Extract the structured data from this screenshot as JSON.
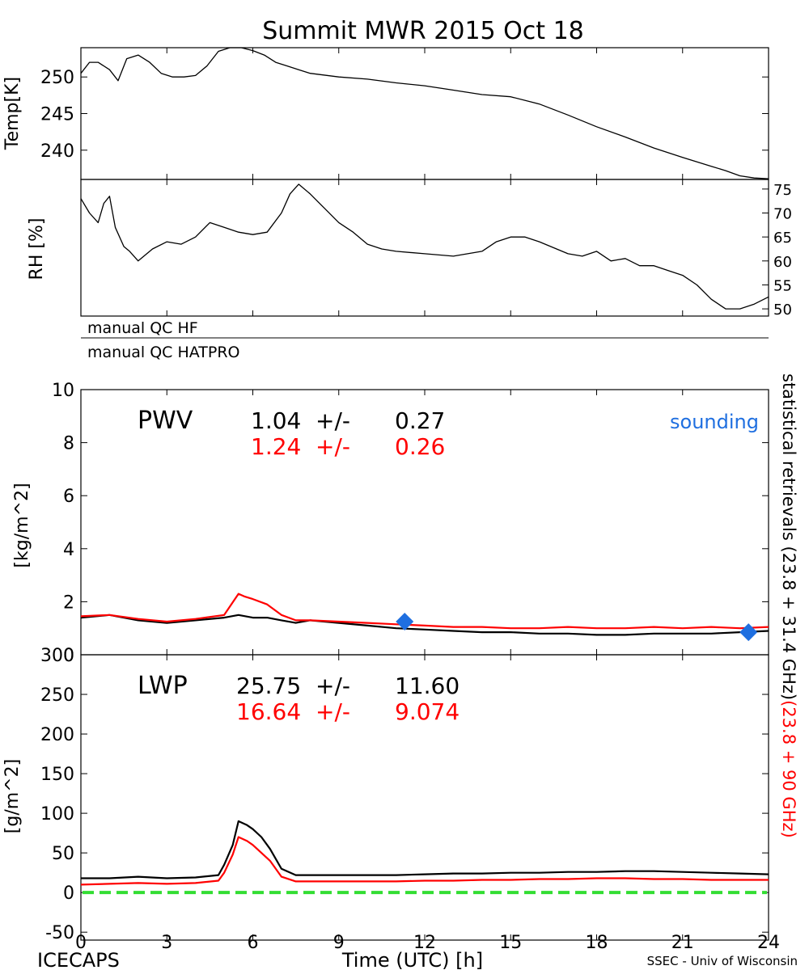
{
  "title": "Summit MWR 2015 Oct 18",
  "footer": {
    "left": "ICECAPS",
    "center": "Time (UTC) [h]",
    "right": "SSEC - Univ of Wisconsin"
  },
  "colors": {
    "primary": "#000000",
    "secondary": "#ff0000",
    "sounding": "#1f6fe0",
    "zero": "#33dd33"
  },
  "qc": {
    "hf": "manual QC HF",
    "hatpro": "manual QC HATPRO"
  },
  "right_label": {
    "black": "statistical retrievals (23.8 + 31.4 GHz)",
    "red": "(23.8 + 90 GHz)"
  },
  "chart_data": [
    {
      "id": "temp",
      "type": "line",
      "ylabel": "Temp[K]",
      "xlim": [
        0,
        24
      ],
      "ylim": [
        236,
        254
      ],
      "yticks": [
        240,
        245,
        250
      ],
      "series": [
        {
          "color": "#000000",
          "x": [
            0,
            0.3,
            0.6,
            1,
            1.3,
            1.6,
            2,
            2.4,
            2.8,
            3.2,
            3.6,
            4,
            4.4,
            4.8,
            5.2,
            5.6,
            6,
            6.4,
            6.8,
            7.2,
            7.6,
            8,
            9,
            10,
            11,
            12,
            13,
            14,
            15,
            16,
            17,
            18,
            19,
            20,
            21,
            22,
            22.5,
            23,
            23.5,
            24
          ],
          "y": [
            250.5,
            252,
            252,
            251,
            249.5,
            252.5,
            253,
            252,
            250.5,
            250,
            250,
            250.2,
            251.5,
            253.5,
            254,
            254,
            253.6,
            253,
            252,
            251.5,
            251,
            250.5,
            250,
            249.7,
            249.2,
            248.8,
            248.2,
            247.6,
            247.3,
            246.3,
            244.8,
            243.2,
            241.8,
            240.3,
            239,
            237.8,
            237.2,
            236.5,
            236.2,
            236.1
          ]
        }
      ]
    },
    {
      "id": "rh",
      "type": "line",
      "ylabel": "RH [%]",
      "xlim": [
        0,
        24
      ],
      "ylim": [
        48.5,
        77
      ],
      "yticks": [
        50,
        55,
        60,
        65,
        70,
        75
      ],
      "series": [
        {
          "color": "#000000",
          "x": [
            0,
            0.3,
            0.6,
            0.8,
            1,
            1.2,
            1.5,
            1.7,
            2,
            2.5,
            3,
            3.5,
            4,
            4.5,
            5,
            5.5,
            6,
            6.5,
            7,
            7.3,
            7.6,
            8,
            8.5,
            9,
            9.5,
            10,
            10.5,
            11,
            12,
            13,
            14,
            14.5,
            15,
            15.5,
            16,
            17,
            17.5,
            18,
            18.5,
            19,
            19.5,
            20,
            20.5,
            21,
            21.5,
            22,
            22.5,
            23,
            23.5,
            24
          ],
          "y": [
            73,
            70,
            68,
            72,
            73.5,
            67,
            63,
            62,
            60,
            62.5,
            64,
            63.5,
            65,
            68,
            67,
            66,
            65.5,
            66,
            70,
            74,
            76,
            74,
            71,
            68,
            66,
            63.5,
            62.5,
            62,
            61.5,
            61,
            62,
            64,
            65,
            65,
            64,
            61.5,
            61,
            62,
            60,
            60.5,
            59,
            59,
            58,
            57,
            55,
            52,
            50,
            50,
            51,
            52.5
          ]
        }
      ]
    },
    {
      "id": "pwv",
      "type": "line",
      "ylabel": "[kg/m^2]",
      "xlim": [
        0,
        24
      ],
      "ylim": [
        0,
        10
      ],
      "yticks": [
        0,
        2,
        4,
        6,
        8,
        10
      ],
      "label": "PWV",
      "stats": [
        {
          "mean": "1.04",
          "pm": "+/-",
          "sd": "0.27",
          "color": "#000000"
        },
        {
          "mean": "1.24",
          "pm": "+/-",
          "sd": "0.26",
          "color": "#ff0000"
        }
      ],
      "legend": "sounding",
      "series": [
        {
          "color": "#000000",
          "x": [
            0,
            1,
            2,
            3,
            4,
            5,
            5.5,
            6,
            6.5,
            7,
            7.5,
            8,
            9,
            10,
            11,
            12,
            13,
            14,
            15,
            16,
            17,
            18,
            19,
            20,
            21,
            22,
            23,
            24
          ],
          "y": [
            1.4,
            1.5,
            1.3,
            1.2,
            1.3,
            1.4,
            1.5,
            1.4,
            1.4,
            1.3,
            1.2,
            1.3,
            1.2,
            1.1,
            1.0,
            0.95,
            0.9,
            0.85,
            0.85,
            0.8,
            0.8,
            0.75,
            0.75,
            0.8,
            0.8,
            0.8,
            0.85,
            0.9
          ]
        },
        {
          "color": "#ff0000",
          "x": [
            0,
            1,
            2,
            3,
            4,
            5,
            5.5,
            5.7,
            6,
            6.5,
            7,
            7.5,
            8,
            9,
            10,
            11,
            12,
            13,
            14,
            15,
            16,
            17,
            18,
            19,
            20,
            21,
            22,
            23,
            24
          ],
          "y": [
            1.45,
            1.5,
            1.35,
            1.25,
            1.35,
            1.5,
            2.3,
            2.2,
            2.1,
            1.9,
            1.5,
            1.3,
            1.3,
            1.25,
            1.2,
            1.15,
            1.1,
            1.05,
            1.05,
            1.0,
            1.0,
            1.05,
            1.0,
            1.0,
            1.05,
            1.0,
            1.05,
            1.0,
            1.05
          ]
        }
      ],
      "sounding_points": [
        {
          "x": 11.3,
          "y": 1.25
        },
        {
          "x": 23.3,
          "y": 0.85
        }
      ]
    },
    {
      "id": "lwp",
      "type": "line",
      "ylabel": "[g/m^2]",
      "xlim": [
        0,
        24
      ],
      "ylim": [
        -60,
        300
      ],
      "yticks": [
        -50,
        0,
        50,
        100,
        150,
        200,
        250,
        300
      ],
      "xticks": [
        0,
        3,
        6,
        9,
        12,
        15,
        18,
        21,
        24
      ],
      "label": "LWP",
      "stats": [
        {
          "mean": "25.75",
          "pm": "+/-",
          "sd": "11.60",
          "color": "#000000"
        },
        {
          "mean": "16.64",
          "pm": "+/-",
          "sd": "9.074",
          "color": "#ff0000"
        }
      ],
      "zero_line": 0,
      "series": [
        {
          "color": "#000000",
          "x": [
            0,
            1,
            2,
            3,
            4,
            4.8,
            5,
            5.3,
            5.5,
            5.8,
            6,
            6.3,
            6.6,
            7,
            7.5,
            8,
            9,
            10,
            11,
            12,
            13,
            14,
            15,
            16,
            17,
            18,
            19,
            20,
            21,
            22,
            23,
            24
          ],
          "y": [
            18,
            18,
            20,
            18,
            19,
            22,
            35,
            60,
            90,
            85,
            80,
            70,
            55,
            30,
            22,
            22,
            22,
            22,
            22,
            23,
            24,
            24,
            25,
            25,
            26,
            26,
            27,
            27,
            26,
            25,
            24,
            23
          ]
        },
        {
          "color": "#ff0000",
          "x": [
            0,
            1,
            2,
            3,
            4,
            4.8,
            5,
            5.3,
            5.5,
            5.8,
            6,
            6.3,
            6.6,
            7,
            7.5,
            8,
            9,
            10,
            11,
            12,
            13,
            14,
            15,
            16,
            17,
            18,
            19,
            20,
            21,
            22,
            23,
            24
          ],
          "y": [
            10,
            11,
            12,
            11,
            12,
            15,
            25,
            48,
            70,
            65,
            60,
            50,
            40,
            20,
            14,
            14,
            14,
            14,
            14,
            15,
            15,
            16,
            16,
            17,
            17,
            18,
            18,
            17,
            17,
            16,
            16,
            16
          ]
        }
      ]
    }
  ]
}
